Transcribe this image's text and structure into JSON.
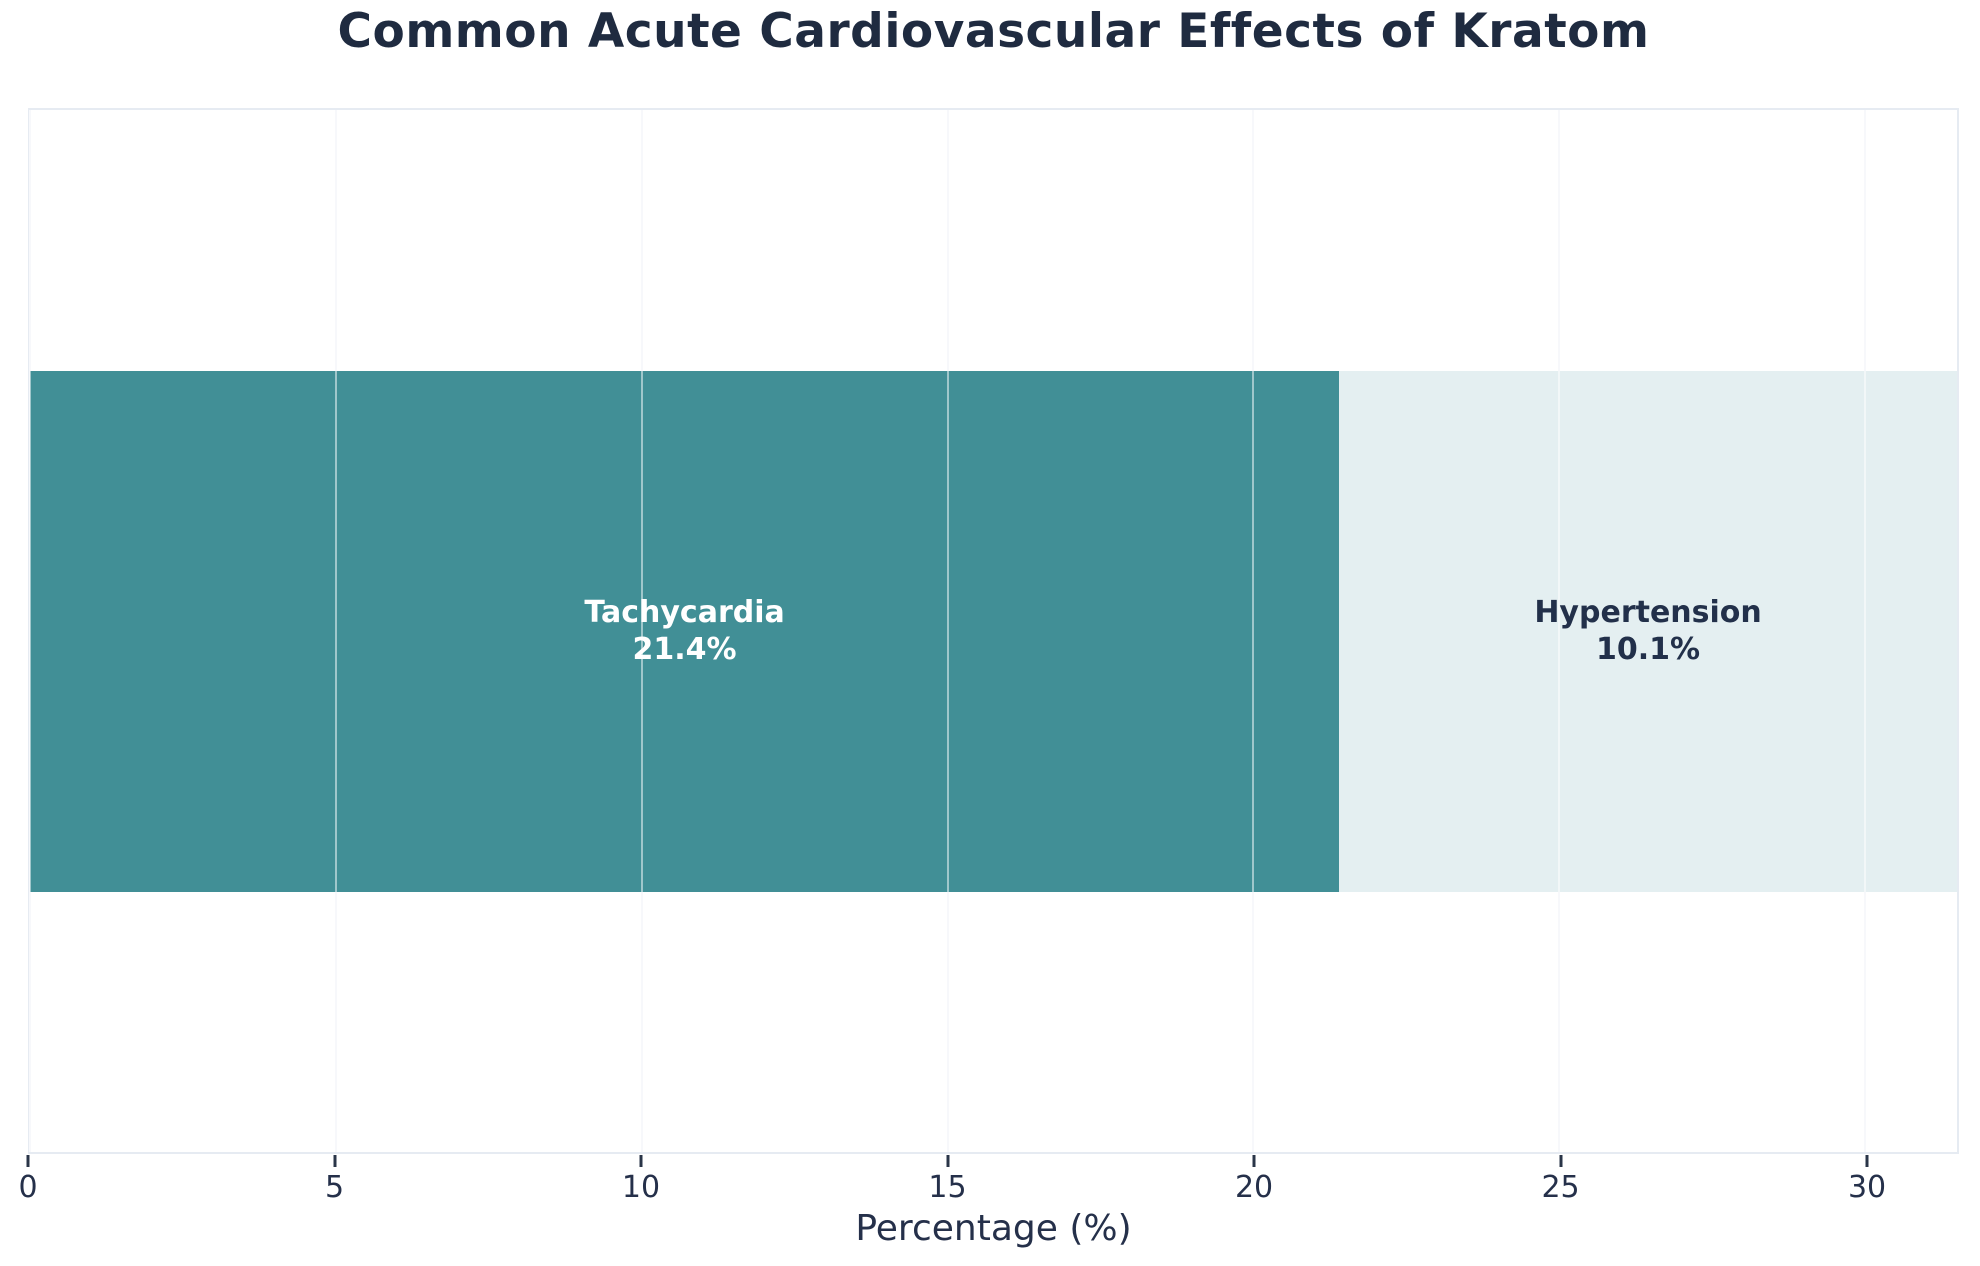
{
  "chart_data": {
    "type": "bar",
    "orientation": "horizontal",
    "stacked": true,
    "title": "Common Acute Cardiovascular Effects of Kratom",
    "xlabel": "Percentage (%)",
    "ylabel": "",
    "categories": [
      "Tachycardia",
      "Hypertension"
    ],
    "values": [
      21.4,
      10.1
    ],
    "segment_labels": [
      "Tachycardia\n21.4%",
      "Hypertension\n10.1%"
    ],
    "xlim": [
      0,
      31.5
    ],
    "xticks": [
      0,
      5,
      10,
      15,
      20,
      25,
      30
    ],
    "grid": true,
    "legend": false,
    "bar_colors": [
      "#418f96",
      "#e4eff1"
    ],
    "bar_label_colors": [
      "#ffffff",
      "#22304a"
    ]
  },
  "style": {
    "title_color": "#1f2b40",
    "axis_text_color": "#25304a",
    "tick_mark_color": "#2a3548",
    "gridline_color": "#eef1f6",
    "gridline_over_bar_color": "rgba(255,255,255,0.5)",
    "plot_border_color": "#e6ebf2",
    "background_color": "#ffffff"
  }
}
